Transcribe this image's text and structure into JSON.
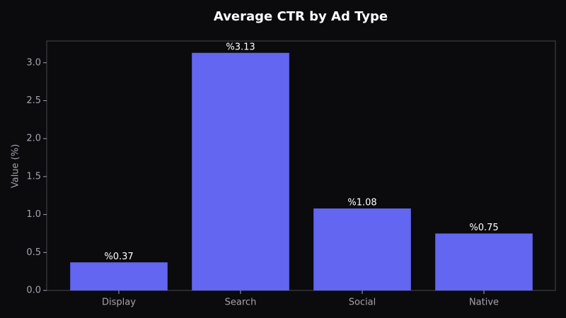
{
  "chart_data": {
    "type": "bar",
    "title": "Average CTR by Ad Type",
    "y_label": "Value (%)",
    "categories": [
      "Display",
      "Search",
      "Social",
      "Native"
    ],
    "values": [
      0.37,
      3.13,
      1.08,
      0.75
    ],
    "value_labels": [
      "%0.37",
      "%3.13",
      "%1.08",
      "%0.75"
    ],
    "color": "#6366f1",
    "ylim": [
      0,
      3.2865
    ],
    "yticks": [
      {
        "value": 0,
        "label": "0.0"
      },
      {
        "value": 0.5,
        "label": "0.5"
      },
      {
        "value": 1,
        "label": "1.0"
      },
      {
        "value": 1.5,
        "label": "1.5"
      },
      {
        "value": 2,
        "label": "2.0"
      },
      {
        "value": 2.5,
        "label": "2.5"
      },
      {
        "value": 3,
        "label": "3.0"
      }
    ]
  }
}
